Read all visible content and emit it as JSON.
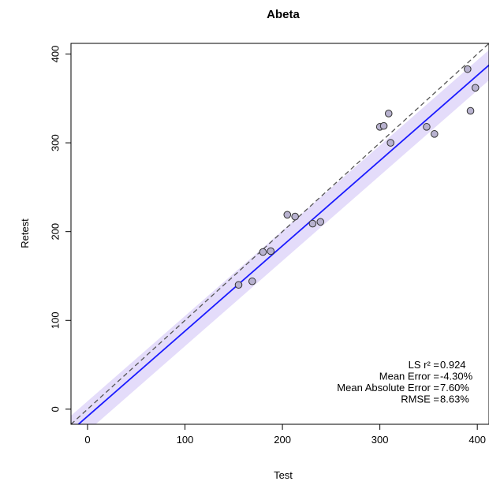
{
  "chart_data": {
    "type": "scatter",
    "title": "Abeta",
    "xlabel": "Test",
    "ylabel": "Retest",
    "xlim": [
      -17,
      412
    ],
    "ylim": [
      -17,
      412
    ],
    "xticks": [
      0,
      100,
      200,
      300,
      400
    ],
    "yticks": [
      0,
      100,
      200,
      300,
      400
    ],
    "grid": false,
    "points": [
      {
        "x": 155,
        "y": 140
      },
      {
        "x": 169,
        "y": 144
      },
      {
        "x": 180,
        "y": 177
      },
      {
        "x": 188,
        "y": 178
      },
      {
        "x": 205,
        "y": 219
      },
      {
        "x": 213,
        "y": 217
      },
      {
        "x": 231,
        "y": 209
      },
      {
        "x": 239,
        "y": 211
      },
      {
        "x": 300,
        "y": 318
      },
      {
        "x": 304,
        "y": 319
      },
      {
        "x": 309,
        "y": 333
      },
      {
        "x": 311,
        "y": 300
      },
      {
        "x": 348,
        "y": 318
      },
      {
        "x": 356,
        "y": 310
      },
      {
        "x": 390,
        "y": 383
      },
      {
        "x": 393,
        "y": 336
      },
      {
        "x": 398,
        "y": 362
      }
    ],
    "fit_line": {
      "intercept": -8,
      "slope": 0.96
    },
    "confidence_band_halfwidth": 17,
    "identity_line": true,
    "colors": {
      "points_fill": "#b8b2cf",
      "points_stroke": "#333333",
      "fit_line": "#1a1aff",
      "band": "#e4dcfa",
      "identity": "#555555"
    },
    "stats": [
      {
        "label": "LS r² = ",
        "value": "0.924"
      },
      {
        "label": "Mean Error = ",
        "value": "-4.30%"
      },
      {
        "label": "Mean Absolute Error = ",
        "value": "7.60%"
      },
      {
        "label": "RMSE = ",
        "value": "8.63%"
      }
    ]
  }
}
